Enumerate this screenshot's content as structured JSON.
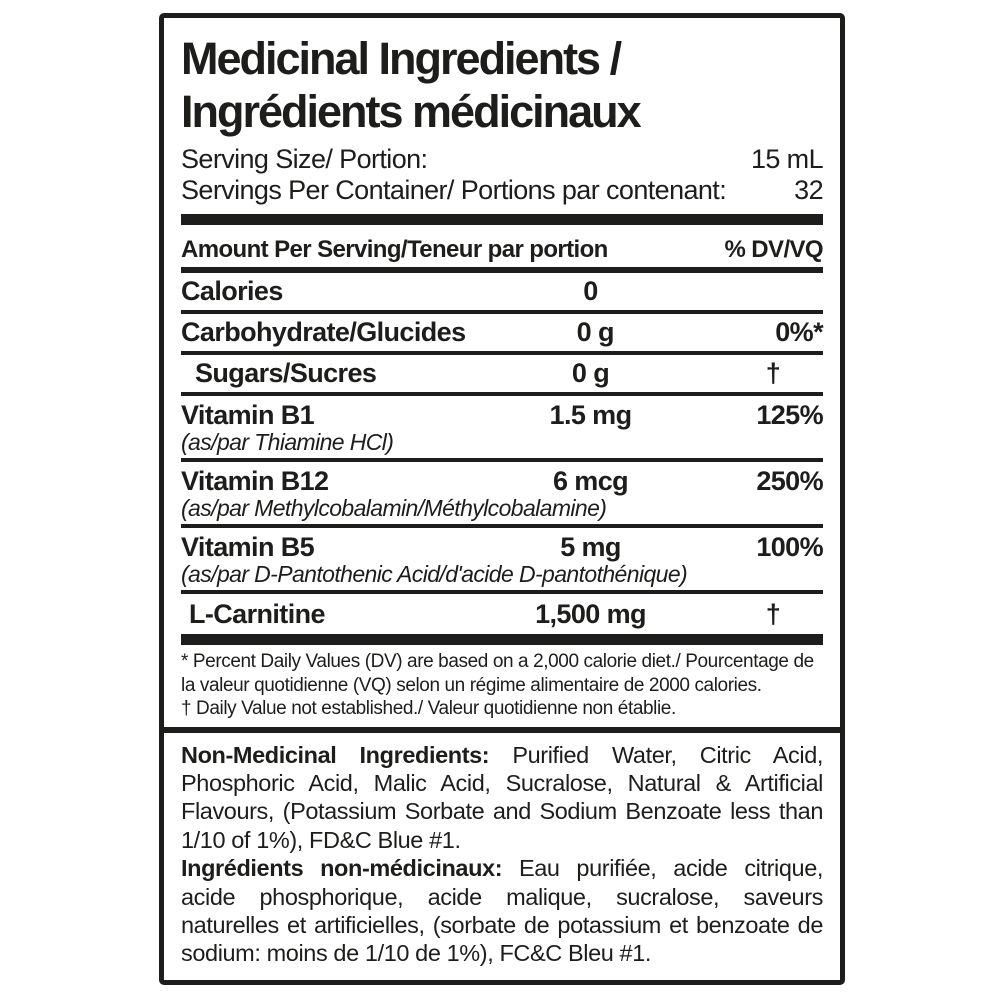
{
  "label": {
    "title_line1": "Medicinal Ingredients /",
    "title_line2": "Ingrédients médicinaux",
    "serving": [
      {
        "label": "Serving Size/ Portion:",
        "value": "15 mL"
      },
      {
        "label": "Servings Per Container/ Portions par contenant:",
        "value": "32"
      }
    ],
    "table": {
      "header_left": "Amount Per Serving/Teneur par portion",
      "header_right": "% DV/VQ",
      "rows": [
        {
          "name": "Calories",
          "sub": "",
          "amount": "0",
          "dv": ""
        },
        {
          "name": "Carbohydrate/Glucides",
          "sub": "",
          "amount": "0 g",
          "dv": "0%*"
        },
        {
          "name": "Sugars/Sucres",
          "sub": "",
          "amount": "0 g",
          "dv": "†"
        },
        {
          "name": "Vitamin B1",
          "sub": "(as/par Thiamine HCl)",
          "amount": "1.5 mg",
          "dv": "125%"
        },
        {
          "name": "Vitamin B12",
          "sub": "(as/par Methylcobalamin/Méthylcobalamine)",
          "amount": "6 mcg",
          "dv": "250%"
        },
        {
          "name": "Vitamin B5",
          "sub": "(as/par D-Pantothenic Acid/d'acide D-pantothénique)",
          "amount": "5 mg",
          "dv": "100%"
        },
        {
          "name": "L-Carnitine",
          "sub": "",
          "amount": "1,500 mg",
          "dv": "†"
        }
      ]
    },
    "footnotes": [
      "* Percent Daily Values (DV) are based on a 2,000 calorie diet./ Pourcentage de la valeur quotidienne (VQ) selon un régime alimentaire de 2000 calories.",
      "† Daily Value not established./ Valeur quotidienne non établie."
    ],
    "non_medicinal": {
      "en_label": "Non-Medicinal Ingredients:",
      "en_text": " Purified Water, Citric Acid, Phosphoric Acid, Malic Acid, Sucralose, Natural & Artificial Flavours, (Potassium Sorbate and Sodium Benzoate less than 1/10 of 1%), FD&C Blue #1.",
      "fr_label": "Ingrédients non-médicinaux:",
      "fr_text": " Eau purifiée, acide citrique, acide phosphorique, acide malique, sucralose, saveurs naturelles et artificielles, (sorbate de potassium et benzoate de sodium: moins de 1/10 de 1%), FC&C Bleu #1."
    },
    "colors": {
      "ink": "#1d1d1b",
      "background": "#ffffff"
    }
  }
}
